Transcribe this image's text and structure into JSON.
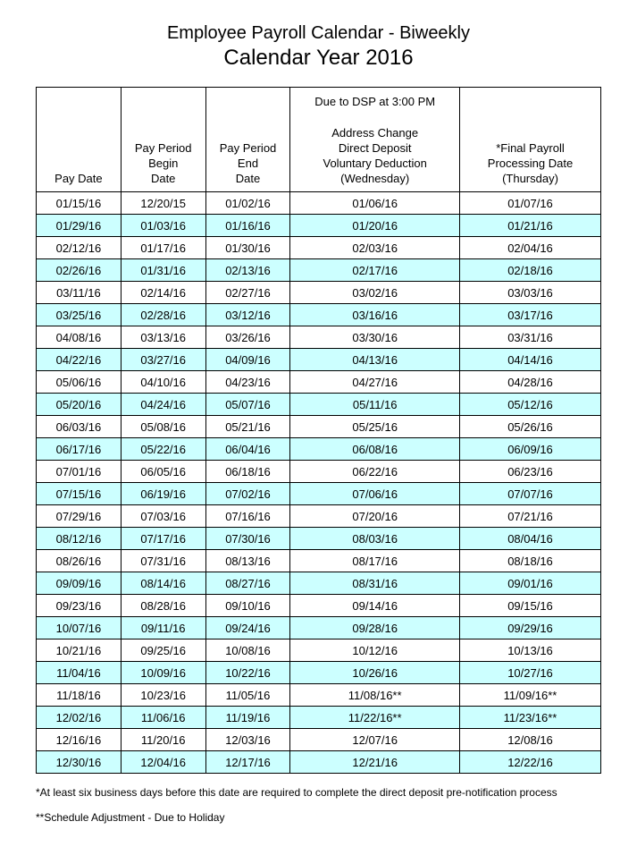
{
  "title": "Employee Payroll Calendar - Biweekly",
  "subtitle": "Calendar Year 2016",
  "headers": {
    "col1": "Pay Date",
    "col2_l1": "Pay Period",
    "col2_l2": "Begin",
    "col2_l3": "Date",
    "col3_l1": "Pay Period",
    "col3_l2": "End",
    "col3_l3": "Date",
    "col4_top": "Due to DSP at 3:00 PM",
    "col4_l1": "Address Change",
    "col4_l2": "Direct Deposit",
    "col4_l3": "Voluntary Deduction",
    "col4_l4": "(Wednesday)",
    "col5_l1": "*Final Payroll",
    "col5_l2": "Processing Date",
    "col5_l3": "(Thursday)"
  },
  "rows": [
    {
      "hl": false,
      "c": [
        "01/15/16",
        "12/20/15",
        "01/02/16",
        "01/06/16",
        "01/07/16"
      ]
    },
    {
      "hl": true,
      "c": [
        "01/29/16",
        "01/03/16",
        "01/16/16",
        "01/20/16",
        "01/21/16"
      ]
    },
    {
      "hl": false,
      "c": [
        "02/12/16",
        "01/17/16",
        "01/30/16",
        "02/03/16",
        "02/04/16"
      ]
    },
    {
      "hl": true,
      "c": [
        "02/26/16",
        "01/31/16",
        "02/13/16",
        "02/17/16",
        "02/18/16"
      ]
    },
    {
      "hl": false,
      "c": [
        "03/11/16",
        "02/14/16",
        "02/27/16",
        "03/02/16",
        "03/03/16"
      ]
    },
    {
      "hl": true,
      "c": [
        "03/25/16",
        "02/28/16",
        "03/12/16",
        "03/16/16",
        "03/17/16"
      ]
    },
    {
      "hl": false,
      "c": [
        "04/08/16",
        "03/13/16",
        "03/26/16",
        "03/30/16",
        "03/31/16"
      ]
    },
    {
      "hl": true,
      "c": [
        "04/22/16",
        "03/27/16",
        "04/09/16",
        "04/13/16",
        "04/14/16"
      ]
    },
    {
      "hl": false,
      "c": [
        "05/06/16",
        "04/10/16",
        "04/23/16",
        "04/27/16",
        "04/28/16"
      ]
    },
    {
      "hl": true,
      "c": [
        "05/20/16",
        "04/24/16",
        "05/07/16",
        "05/11/16",
        "05/12/16"
      ]
    },
    {
      "hl": false,
      "c": [
        "06/03/16",
        "05/08/16",
        "05/21/16",
        "05/25/16",
        "05/26/16"
      ]
    },
    {
      "hl": true,
      "c": [
        "06/17/16",
        "05/22/16",
        "06/04/16",
        "06/08/16",
        "06/09/16"
      ]
    },
    {
      "hl": false,
      "c": [
        "07/01/16",
        "06/05/16",
        "06/18/16",
        "06/22/16",
        "06/23/16"
      ]
    },
    {
      "hl": true,
      "c": [
        "07/15/16",
        "06/19/16",
        "07/02/16",
        "07/06/16",
        "07/07/16"
      ]
    },
    {
      "hl": false,
      "c": [
        "07/29/16",
        "07/03/16",
        "07/16/16",
        "07/20/16",
        "07/21/16"
      ]
    },
    {
      "hl": true,
      "c": [
        "08/12/16",
        "07/17/16",
        "07/30/16",
        "08/03/16",
        "08/04/16"
      ]
    },
    {
      "hl": false,
      "c": [
        "08/26/16",
        "07/31/16",
        "08/13/16",
        "08/17/16",
        "08/18/16"
      ]
    },
    {
      "hl": true,
      "c": [
        "09/09/16",
        "08/14/16",
        "08/27/16",
        "08/31/16",
        "09/01/16"
      ]
    },
    {
      "hl": false,
      "c": [
        "09/23/16",
        "08/28/16",
        "09/10/16",
        "09/14/16",
        "09/15/16"
      ]
    },
    {
      "hl": true,
      "c": [
        "10/07/16",
        "09/11/16",
        "09/24/16",
        "09/28/16",
        "09/29/16"
      ]
    },
    {
      "hl": false,
      "c": [
        "10/21/16",
        "09/25/16",
        "10/08/16",
        "10/12/16",
        "10/13/16"
      ]
    },
    {
      "hl": true,
      "c": [
        "11/04/16",
        "10/09/16",
        "10/22/16",
        "10/26/16",
        "10/27/16"
      ]
    },
    {
      "hl": false,
      "c": [
        "11/18/16",
        "10/23/16",
        "11/05/16",
        "11/08/16**",
        "11/09/16**"
      ]
    },
    {
      "hl": true,
      "c": [
        "12/02/16",
        "11/06/16",
        "11/19/16",
        "11/22/16**",
        "11/23/16**"
      ]
    },
    {
      "hl": false,
      "c": [
        "12/16/16",
        "11/20/16",
        "12/03/16",
        "12/07/16",
        "12/08/16"
      ]
    },
    {
      "hl": true,
      "c": [
        "12/30/16",
        "12/04/16",
        "12/17/16",
        "12/21/16",
        "12/22/16"
      ]
    }
  ],
  "footnote1": "*At least six business days before this date are required to complete the direct deposit pre-notification process",
  "footnote2": "**Schedule Adjustment - Due to Holiday",
  "style": {
    "highlight_color": "#ccffff",
    "border_color": "#000000",
    "background_color": "#ffffff",
    "col_widths_pct": [
      15,
      15,
      15,
      30,
      25
    ]
  }
}
